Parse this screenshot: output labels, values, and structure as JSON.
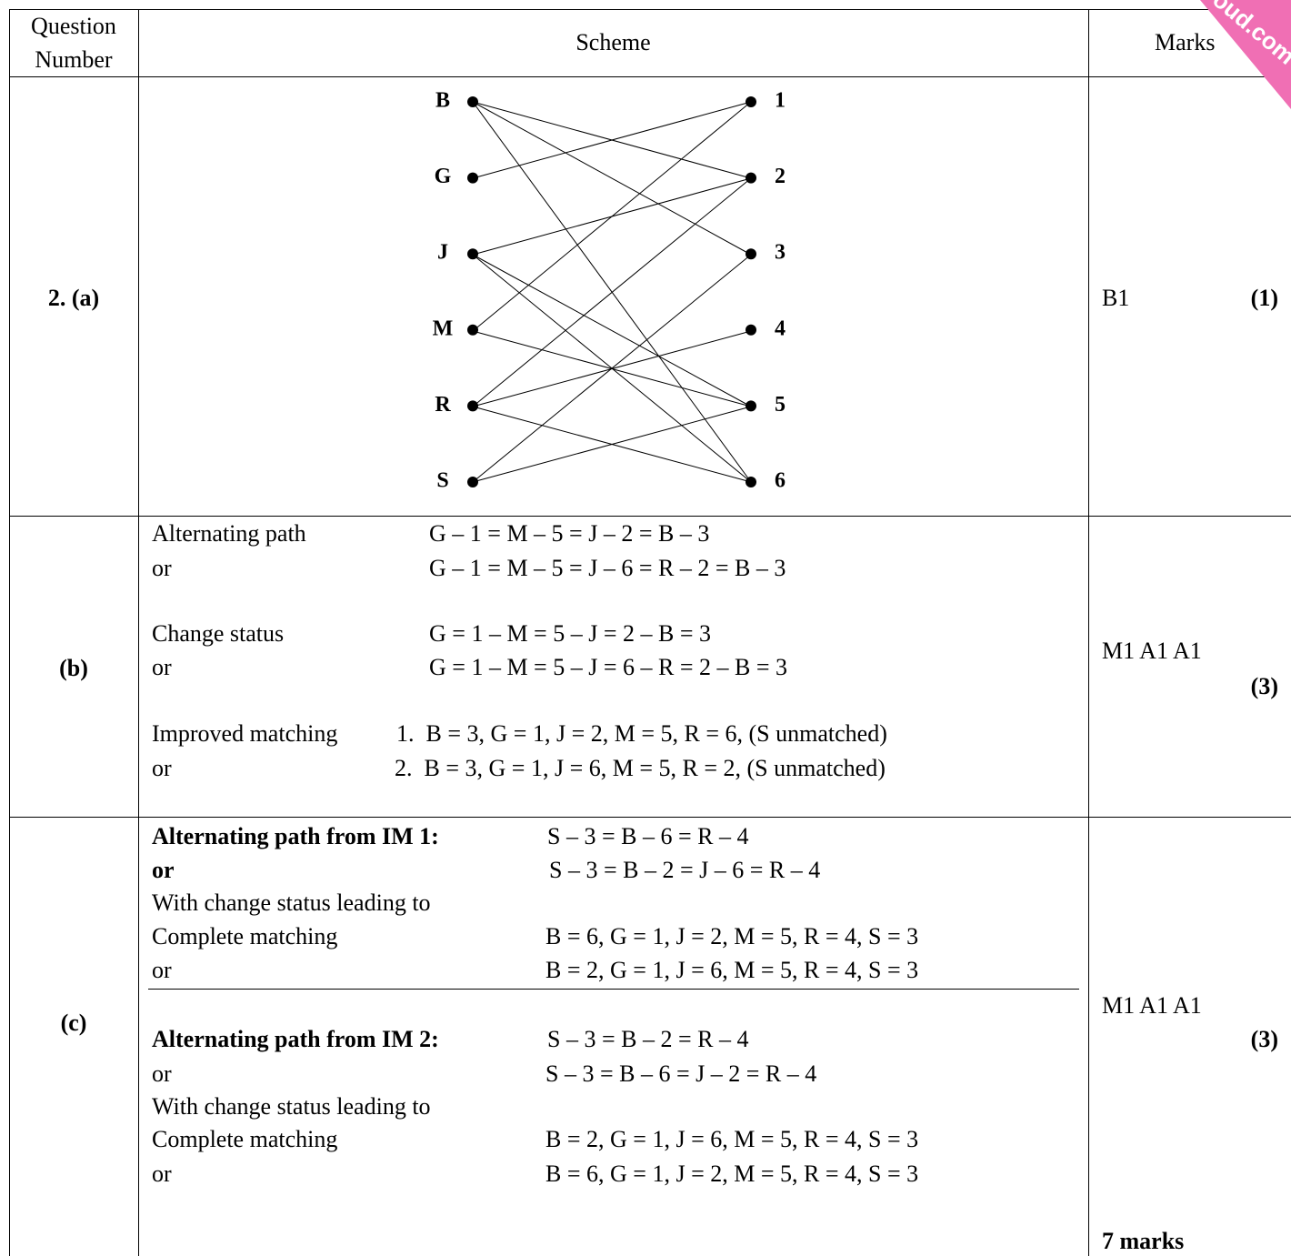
{
  "header": {
    "question": [
      "Question",
      "Number"
    ],
    "scheme": "Scheme",
    "marks": "Marks"
  },
  "watermark": "oud.com",
  "rows": [
    {
      "number": "2. (a)",
      "graph": {
        "left": [
          "B",
          "G",
          "J",
          "M",
          "R",
          "S"
        ],
        "right": [
          "1",
          "2",
          "3",
          "4",
          "5",
          "6"
        ]
      },
      "marks": "B1",
      "total": "(1)"
    },
    {
      "number": "(b)",
      "lines": [
        [
          "Alternating path",
          "G – 1 = M – 5 = J – 2 = B – 3"
        ],
        [
          "or",
          "G – 1 = M – 5 = J – 6 = R – 2 = B – 3"
        ],
        [
          "Change status",
          "G = 1 – M = 5 – J = 2 – B = 3"
        ],
        [
          "or",
          "G = 1 – M = 5 – J = 6 – R = 2 – B = 3"
        ],
        [
          "Improved matching",
          "1.  B = 3, G = 1, J = 2, M = 5, R = 6, (S unmatched)"
        ],
        [
          "or",
          "2.  B = 3, G = 1, J = 6, M = 5, R = 2, (S unmatched)"
        ]
      ],
      "marks": "M1 A1 A1",
      "total": "(3)"
    },
    {
      "number": "(c)",
      "lines": [
        [
          "Alternating path from IM 1:",
          "S – 3 = B – 6 = R – 4"
        ],
        [
          "or",
          "S – 3 = B – 2 = J – 6 = R – 4"
        ],
        [
          "With change status leading to",
          ""
        ],
        [
          "Complete matching",
          "B = 6, G = 1, J = 2, M = 5, R = 4, S = 3"
        ],
        [
          "or",
          "B = 2, G = 1, J = 6, M = 5, R = 4, S = 3"
        ],
        [
          "Alternating path from IM 2:",
          "S – 3 = B – 2 = R – 4"
        ],
        [
          "or",
          "S – 3 = B – 6 = J – 2 = R – 4"
        ],
        [
          "With change status leading to",
          ""
        ],
        [
          "Complete matching",
          "B = 2, G = 1, J = 6, M = 5, R = 4, S = 3"
        ],
        [
          "or",
          "B = 6, G = 1, J = 2, M = 5, R = 4, S = 3"
        ]
      ],
      "marks": "M1 A1 A1",
      "total": "(3)",
      "grand_total": "7 marks"
    }
  ]
}
